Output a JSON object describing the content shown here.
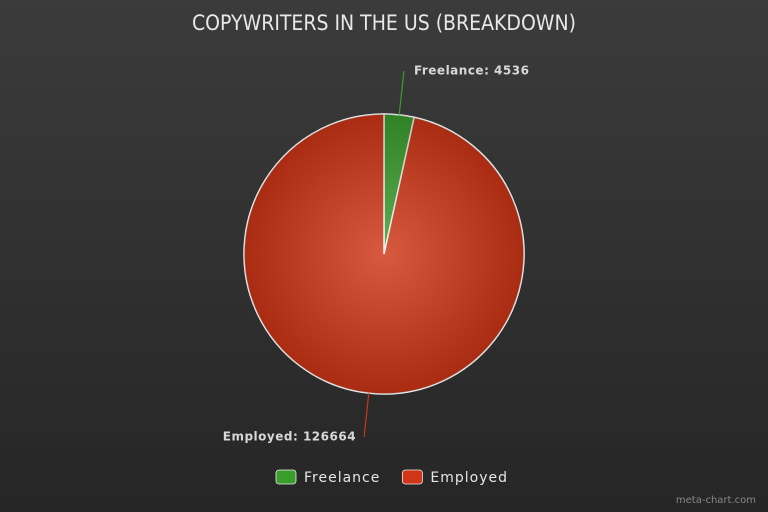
{
  "chart_data": {
    "type": "pie",
    "title": "COPYWRITERS IN THE US (BREAKDOWN)",
    "categories": [
      "Freelance",
      "Employed"
    ],
    "values": [
      4536,
      126664
    ],
    "value_labels": [
      "Freelance: 4536",
      "Employed: 126664"
    ],
    "colors": [
      "#3a9e2c",
      "#cf3516"
    ],
    "legend": "bottom",
    "watermark": "meta-chart.com"
  }
}
